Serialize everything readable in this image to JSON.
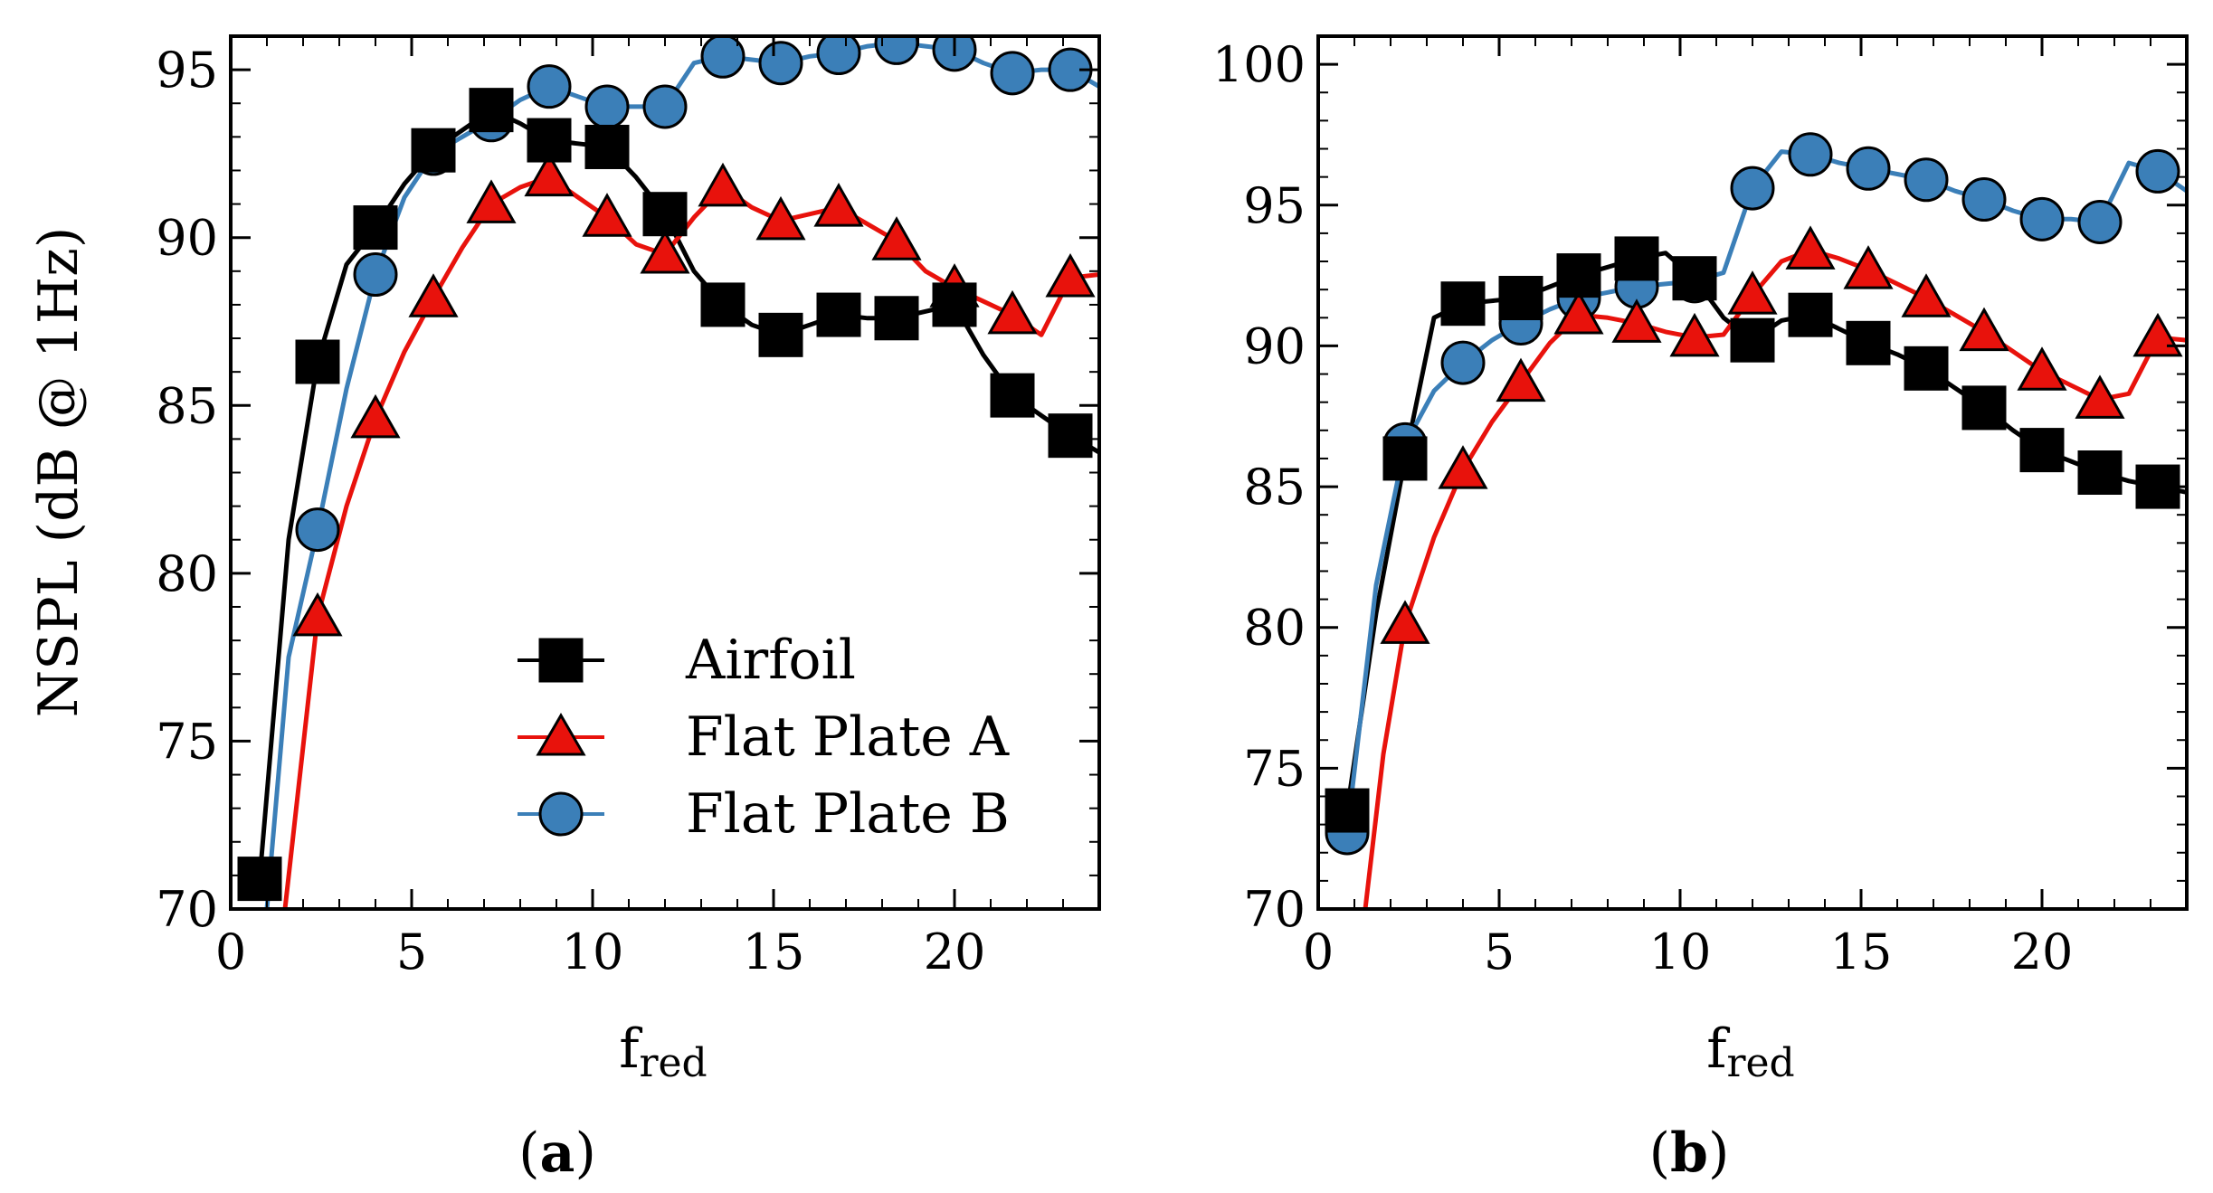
{
  "figure": {
    "ylabel": "NSPL (dB @ 1Hz)",
    "legend": {
      "placement": "lower-right of panel (a)",
      "entries": [
        {
          "series": "Airfoil",
          "label": "Airfoil"
        },
        {
          "series": "Flat Plate A",
          "label": "Flat Plate A"
        },
        {
          "series": "Flat Plate B",
          "label": "Flat Plate B"
        }
      ]
    },
    "series_style": {
      "Airfoil": {
        "color": "#000000",
        "marker": "square",
        "fill": "#000000"
      },
      "Flat Plate A": {
        "color": "#e8120c",
        "marker": "triangle",
        "fill": "#e8120c"
      },
      "Flat Plate B": {
        "color": "#3b7fb8",
        "marker": "circle",
        "fill": "#3b7fb8"
      }
    }
  },
  "chart_data": [
    {
      "type": "line",
      "panel": "a",
      "panel_label": {
        "open": "(",
        "letter": "a",
        "close": ")"
      },
      "xlabel": {
        "main": "f",
        "sub": "red"
      },
      "ylabel": "NSPL (dB @ 1Hz)",
      "xlim": [
        0,
        24
      ],
      "ylim": [
        70,
        96
      ],
      "xticks": [
        0,
        5,
        10,
        15,
        20
      ],
      "yticks": [
        70,
        75,
        80,
        85,
        90,
        95
      ],
      "grid": false,
      "series": [
        {
          "name": "Airfoil",
          "x": [
            0.8,
            2.4,
            4.0,
            5.6,
            7.2,
            8.8,
            10.4,
            12.0,
            13.6,
            15.2,
            16.8,
            18.4,
            20.0,
            21.6,
            23.2
          ],
          "values": [
            70.9,
            86.3,
            90.3,
            92.6,
            93.8,
            92.9,
            92.7,
            90.7,
            88.0,
            87.1,
            87.7,
            87.6,
            88.0,
            85.3,
            84.1
          ],
          "curve": [
            [
              0.8,
              70.9
            ],
            [
              1.6,
              81
            ],
            [
              2.4,
              86.3
            ],
            [
              3.2,
              89.2
            ],
            [
              4.0,
              90.3
            ],
            [
              4.8,
              91.6
            ],
            [
              5.6,
              92.6
            ],
            [
              6.4,
              93.2
            ],
            [
              7.2,
              93.8
            ],
            [
              8.0,
              93.4
            ],
            [
              8.8,
              92.9
            ],
            [
              9.6,
              92.8
            ],
            [
              10.4,
              92.7
            ],
            [
              11.2,
              91.8
            ],
            [
              12.0,
              90.7
            ],
            [
              12.8,
              89.0
            ],
            [
              13.6,
              88.0
            ],
            [
              14.4,
              87.4
            ],
            [
              15.2,
              87.1
            ],
            [
              16.0,
              87.4
            ],
            [
              16.8,
              87.7
            ],
            [
              17.6,
              87.6
            ],
            [
              18.4,
              87.6
            ],
            [
              19.2,
              87.8
            ],
            [
              20.0,
              88.0
            ],
            [
              20.8,
              86.5
            ],
            [
              21.6,
              85.3
            ],
            [
              22.4,
              84.7
            ],
            [
              23.2,
              84.1
            ],
            [
              24.0,
              83.6
            ]
          ]
        },
        {
          "name": "Flat Plate A",
          "x": [
            2.4,
            4.0,
            5.6,
            7.2,
            8.8,
            10.4,
            12.0,
            13.6,
            15.2,
            16.8,
            18.4,
            20.0,
            21.6,
            23.2
          ],
          "values": [
            78.7,
            84.6,
            88.2,
            91.0,
            91.8,
            90.6,
            89.5,
            91.5,
            90.5,
            90.9,
            89.9,
            88.5,
            87.7,
            88.8
          ],
          "curve": [
            [
              1.5,
              70
            ],
            [
              2.4,
              78.7
            ],
            [
              3.2,
              82.0
            ],
            [
              4.0,
              84.6
            ],
            [
              4.8,
              86.6
            ],
            [
              5.6,
              88.2
            ],
            [
              6.4,
              89.7
            ],
            [
              7.2,
              91.0
            ],
            [
              8.0,
              91.5
            ],
            [
              8.8,
              91.8
            ],
            [
              9.6,
              91.2
            ],
            [
              10.4,
              90.6
            ],
            [
              11.2,
              89.8
            ],
            [
              12.0,
              89.5
            ],
            [
              12.8,
              90.6
            ],
            [
              13.6,
              91.5
            ],
            [
              14.4,
              90.9
            ],
            [
              15.2,
              90.5
            ],
            [
              16.0,
              90.7
            ],
            [
              16.8,
              90.9
            ],
            [
              17.6,
              90.4
            ],
            [
              18.4,
              89.9
            ],
            [
              19.2,
              89.0
            ],
            [
              20.0,
              88.5
            ],
            [
              20.8,
              88.1
            ],
            [
              21.6,
              87.7
            ],
            [
              22.4,
              87.1
            ],
            [
              23.2,
              88.8
            ],
            [
              24.0,
              88.9
            ]
          ]
        },
        {
          "name": "Flat Plate B",
          "x": [
            2.4,
            4.0,
            5.6,
            7.2,
            8.8,
            10.4,
            12.0,
            13.6,
            15.2,
            16.8,
            18.4,
            20.0,
            21.6,
            23.2
          ],
          "values": [
            81.3,
            88.9,
            92.5,
            93.5,
            94.5,
            93.9,
            93.9,
            95.4,
            95.2,
            95.5,
            95.8,
            95.6,
            94.9,
            95.0
          ],
          "curve": [
            [
              1.0,
              70
            ],
            [
              1.6,
              77.5
            ],
            [
              2.4,
              81.3
            ],
            [
              3.2,
              85.5
            ],
            [
              4.0,
              88.9
            ],
            [
              4.8,
              91.2
            ],
            [
              5.6,
              92.5
            ],
            [
              6.4,
              93.0
            ],
            [
              7.2,
              93.5
            ],
            [
              8.0,
              94.1
            ],
            [
              8.8,
              94.5
            ],
            [
              9.6,
              94.2
            ],
            [
              10.4,
              93.9
            ],
            [
              11.2,
              93.9
            ],
            [
              12.0,
              93.9
            ],
            [
              12.8,
              95.2
            ],
            [
              13.6,
              95.4
            ],
            [
              14.4,
              95.3
            ],
            [
              15.2,
              95.2
            ],
            [
              16.0,
              95.4
            ],
            [
              16.8,
              95.5
            ],
            [
              17.6,
              95.7
            ],
            [
              18.4,
              95.8
            ],
            [
              19.2,
              95.7
            ],
            [
              20.0,
              95.6
            ],
            [
              20.8,
              95.2
            ],
            [
              21.6,
              94.9
            ],
            [
              22.4,
              95.0
            ],
            [
              23.2,
              95.0
            ],
            [
              24.0,
              94.5
            ]
          ]
        }
      ]
    },
    {
      "type": "line",
      "panel": "b",
      "panel_label": {
        "open": "(",
        "letter": "b",
        "close": ")"
      },
      "xlabel": {
        "main": "f",
        "sub": "red"
      },
      "ylabel": "",
      "xlim": [
        0,
        24
      ],
      "ylim": [
        70,
        101
      ],
      "xticks": [
        0,
        5,
        10,
        15,
        20
      ],
      "yticks": [
        70,
        75,
        80,
        85,
        90,
        95,
        100
      ],
      "grid": false,
      "series": [
        {
          "name": "Airfoil",
          "x": [
            0.8,
            2.4,
            4.0,
            5.6,
            7.2,
            8.8,
            10.4,
            12.0,
            13.6,
            15.2,
            16.8,
            18.4,
            20.0,
            21.6,
            23.2
          ],
          "values": [
            73.5,
            86.0,
            91.5,
            91.7,
            92.5,
            93.1,
            92.4,
            90.2,
            91.1,
            90.1,
            89.2,
            87.8,
            86.3,
            85.5,
            85.0
          ],
          "curve": [
            [
              0.8,
              73.5
            ],
            [
              1.6,
              80.5
            ],
            [
              2.4,
              86.0
            ],
            [
              3.2,
              91.0
            ],
            [
              4.0,
              91.5
            ],
            [
              4.8,
              91.6
            ],
            [
              5.6,
              91.7
            ],
            [
              6.4,
              92.1
            ],
            [
              7.2,
              92.5
            ],
            [
              8.0,
              92.8
            ],
            [
              8.8,
              93.1
            ],
            [
              9.6,
              93.3
            ],
            [
              10.4,
              92.4
            ],
            [
              11.2,
              91.0
            ],
            [
              12.0,
              90.2
            ],
            [
              12.8,
              90.9
            ],
            [
              13.6,
              91.1
            ],
            [
              14.4,
              90.6
            ],
            [
              15.2,
              90.1
            ],
            [
              16.0,
              89.7
            ],
            [
              16.8,
              89.2
            ],
            [
              17.6,
              88.5
            ],
            [
              18.4,
              87.8
            ],
            [
              19.2,
              87.0
            ],
            [
              20.0,
              86.3
            ],
            [
              20.8,
              85.9
            ],
            [
              21.6,
              85.5
            ],
            [
              22.4,
              85.2
            ],
            [
              23.2,
              85.0
            ],
            [
              24.0,
              84.8
            ]
          ]
        },
        {
          "name": "Flat Plate A",
          "x": [
            2.4,
            4.0,
            5.6,
            7.2,
            8.8,
            10.4,
            12.0,
            13.6,
            15.2,
            16.8,
            18.4,
            20.0,
            21.6,
            23.2
          ],
          "values": [
            80.1,
            85.6,
            88.7,
            91.1,
            90.8,
            90.3,
            91.8,
            93.4,
            92.7,
            91.7,
            90.5,
            89.1,
            88.1,
            90.3
          ],
          "curve": [
            [
              1.3,
              70
            ],
            [
              1.8,
              75.5
            ],
            [
              2.4,
              80.1
            ],
            [
              3.2,
              83.2
            ],
            [
              4.0,
              85.6
            ],
            [
              4.8,
              87.3
            ],
            [
              5.6,
              88.7
            ],
            [
              6.4,
              90.1
            ],
            [
              7.2,
              91.1
            ],
            [
              8.0,
              91.0
            ],
            [
              8.8,
              90.8
            ],
            [
              9.6,
              90.5
            ],
            [
              10.4,
              90.3
            ],
            [
              11.2,
              90.4
            ],
            [
              12.0,
              91.8
            ],
            [
              12.8,
              93.0
            ],
            [
              13.6,
              93.4
            ],
            [
              14.4,
              93.1
            ],
            [
              15.2,
              92.7
            ],
            [
              16.0,
              92.2
            ],
            [
              16.8,
              91.7
            ],
            [
              17.6,
              91.1
            ],
            [
              18.4,
              90.5
            ],
            [
              19.2,
              89.8
            ],
            [
              20.0,
              89.1
            ],
            [
              20.8,
              88.6
            ],
            [
              21.6,
              88.1
            ],
            [
              22.4,
              88.3
            ],
            [
              23.2,
              90.3
            ],
            [
              24.0,
              90.2
            ]
          ]
        },
        {
          "name": "Flat Plate B",
          "x": [
            0.8,
            2.4,
            4.0,
            5.6,
            7.2,
            8.8,
            10.4,
            12.0,
            13.6,
            15.2,
            16.8,
            18.4,
            20.0,
            21.6,
            23.2
          ],
          "values": [
            72.7,
            86.5,
            89.4,
            90.8,
            91.7,
            92.1,
            92.3,
            95.6,
            96.8,
            96.3,
            95.9,
            95.2,
            94.5,
            94.4,
            96.2
          ],
          "curve": [
            [
              0.8,
              72.7
            ],
            [
              1.6,
              81.5
            ],
            [
              2.4,
              86.5
            ],
            [
              3.2,
              88.4
            ],
            [
              4.0,
              89.4
            ],
            [
              4.8,
              90.2
            ],
            [
              5.6,
              90.8
            ],
            [
              6.4,
              91.3
            ],
            [
              7.2,
              91.7
            ],
            [
              8.0,
              91.9
            ],
            [
              8.8,
              92.1
            ],
            [
              9.6,
              92.2
            ],
            [
              10.4,
              92.3
            ],
            [
              11.2,
              92.6
            ],
            [
              12.0,
              95.6
            ],
            [
              12.8,
              96.9
            ],
            [
              13.6,
              96.8
            ],
            [
              14.4,
              96.5
            ],
            [
              15.2,
              96.3
            ],
            [
              16.0,
              96.1
            ],
            [
              16.8,
              95.9
            ],
            [
              17.6,
              95.5
            ],
            [
              18.4,
              95.2
            ],
            [
              19.2,
              94.8
            ],
            [
              20.0,
              94.5
            ],
            [
              20.8,
              94.5
            ],
            [
              21.6,
              94.4
            ],
            [
              22.4,
              96.5
            ],
            [
              23.2,
              96.2
            ],
            [
              24.0,
              95.5
            ]
          ]
        }
      ]
    }
  ]
}
